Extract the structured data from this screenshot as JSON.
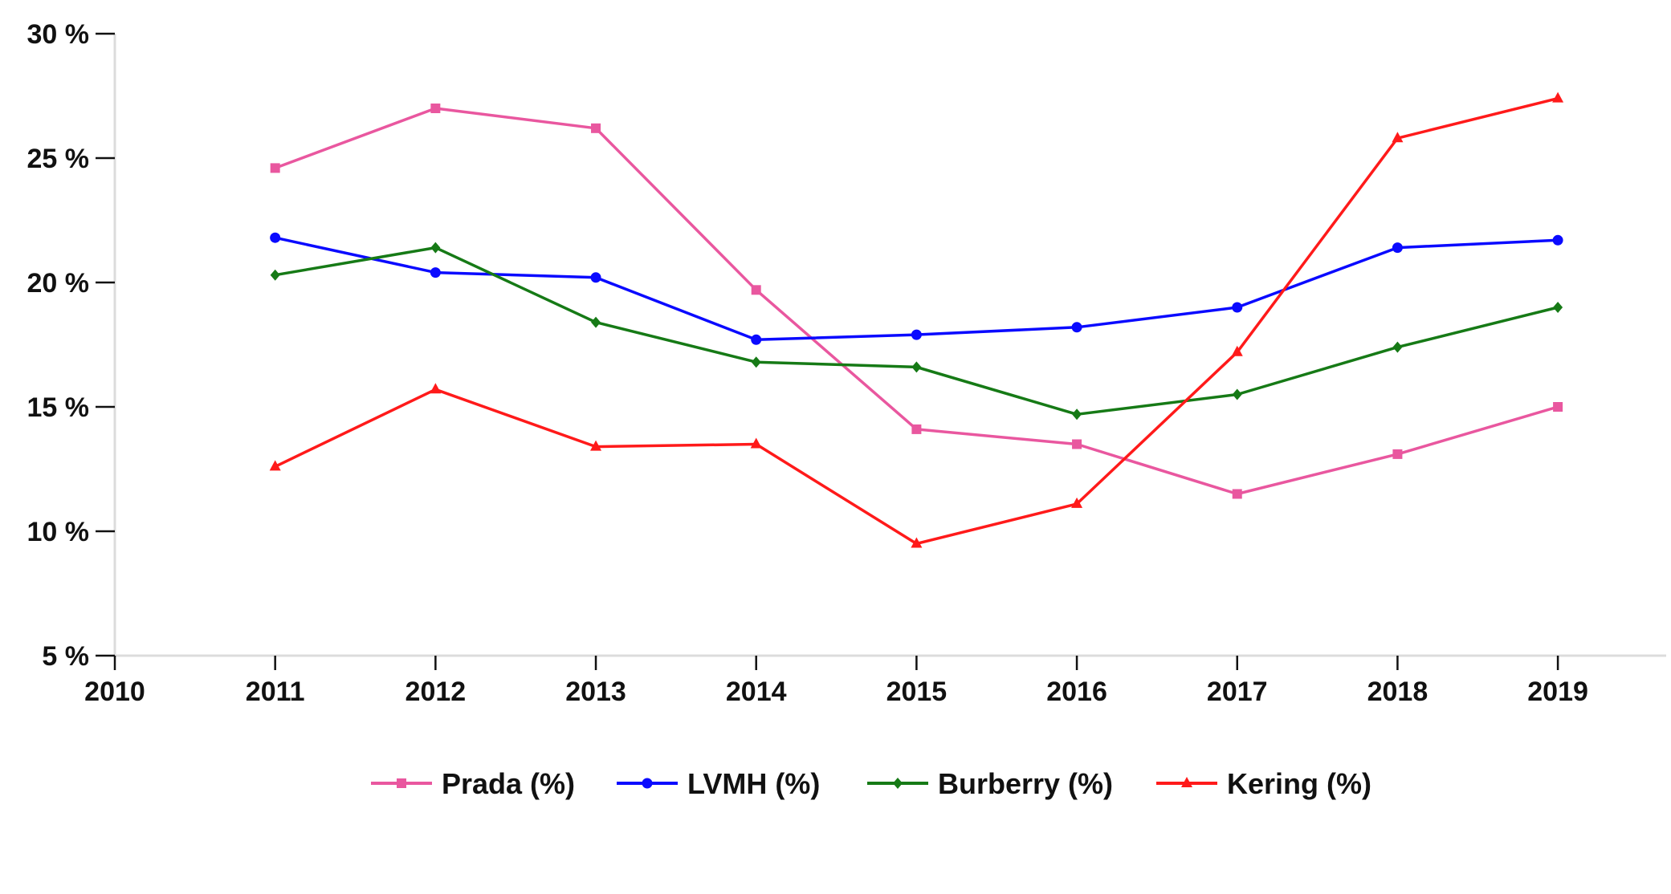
{
  "chart_data": {
    "type": "line",
    "x": [
      2010,
      2011,
      2012,
      2013,
      2014,
      2015,
      2016,
      2017,
      2018,
      2019
    ],
    "x_tick_labels": [
      "2010",
      "2011",
      "2012",
      "2013",
      "2014",
      "2015",
      "2016",
      "2017",
      "2018",
      "2019"
    ],
    "xlim": [
      2010,
      2019.3
    ],
    "ylim": [
      5,
      30
    ],
    "y_ticks": [
      5,
      10,
      15,
      20,
      25,
      30
    ],
    "y_tick_labels": [
      "5 %",
      "10 %",
      "15 %",
      "20 %",
      "25 %",
      "30 %"
    ],
    "grid": false,
    "legend_position": "bottom-center",
    "series": [
      {
        "name": "Prada (%)",
        "color": "#e9579f",
        "marker": "square",
        "x": [
          2011,
          2012,
          2013,
          2014,
          2015,
          2016,
          2017,
          2018,
          2019
        ],
        "values": [
          24.6,
          27.0,
          26.2,
          19.7,
          14.1,
          13.5,
          11.5,
          13.1,
          15.0
        ]
      },
      {
        "name": "LVMH (%)",
        "color": "#0a0aff",
        "marker": "circle",
        "x": [
          2011,
          2012,
          2013,
          2014,
          2015,
          2016,
          2017,
          2018,
          2019
        ],
        "values": [
          21.8,
          20.4,
          20.2,
          17.7,
          17.9,
          18.2,
          19.0,
          21.4,
          21.7
        ]
      },
      {
        "name": "Burberry (%)",
        "color": "#167a16",
        "marker": "diamond",
        "x": [
          2011,
          2012,
          2013,
          2014,
          2015,
          2016,
          2017,
          2018,
          2019
        ],
        "values": [
          20.3,
          21.4,
          18.4,
          16.8,
          16.6,
          14.7,
          15.5,
          17.4,
          19.0
        ]
      },
      {
        "name": "Kering (%)",
        "color": "#ff1a1a",
        "marker": "triangle",
        "x": [
          2011,
          2012,
          2013,
          2014,
          2015,
          2016,
          2017,
          2018,
          2019
        ],
        "values": [
          12.6,
          15.7,
          13.4,
          13.5,
          9.5,
          11.1,
          17.2,
          25.8,
          27.4
        ]
      }
    ]
  }
}
